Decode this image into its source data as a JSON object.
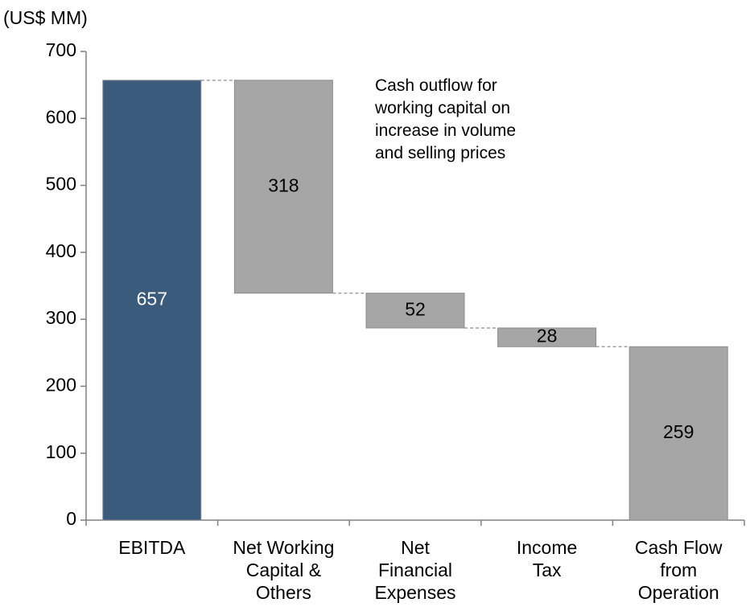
{
  "chart_data": {
    "type": "waterfall",
    "axis_unit": "(US$ MM)",
    "categories": [
      "EBITDA",
      "Net Working\nCapital &\nOthers",
      "Net\nFinancial\nExpenses",
      "Income\nTax",
      "Cash Flow\nfrom\nOperation"
    ],
    "values": [
      657,
      318,
      52,
      28,
      259
    ],
    "measures": [
      "absolute",
      "decrease",
      "decrease",
      "decrease",
      "total"
    ],
    "colors": [
      "#3b5b7d",
      "#a6a6a6",
      "#a6a6a6",
      "#a6a6a6",
      "#a6a6a6"
    ],
    "label_colors": [
      "#ffffff",
      "#000000",
      "#000000",
      "#000000",
      "#000000"
    ],
    "annotation": "Cash outflow for\nworking capital on\nincrease in volume\nand selling prices",
    "ylim": [
      0,
      700
    ],
    "yticks": [
      0,
      100,
      200,
      300,
      400,
      500,
      600,
      700
    ],
    "connectors": true
  }
}
